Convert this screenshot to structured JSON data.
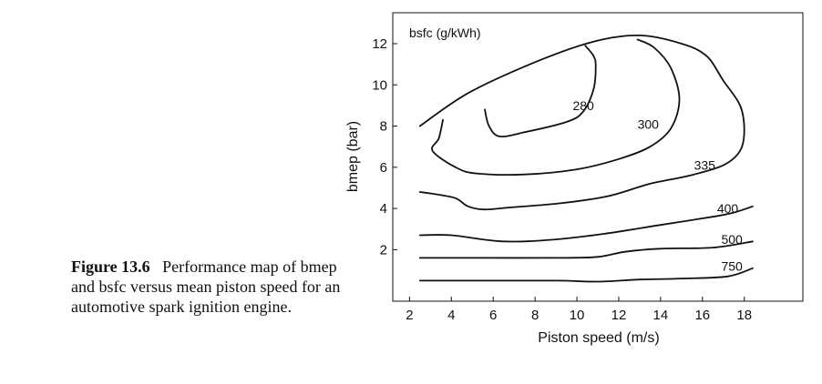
{
  "caption": {
    "lead": "Figure 13.6",
    "text": "Performance map of bmep and bsfc versus mean piston speed for an automotive spark ignition engine."
  },
  "chart_data": {
    "type": "contour",
    "xlabel": "Piston speed (m/s)",
    "ylabel": "bmep (bar)",
    "unit_label": "bsfc (g/kWh)",
    "xlim": [
      1.2,
      20.8
    ],
    "ylim": [
      -0.5,
      13.5
    ],
    "xticks": [
      2,
      4,
      6,
      8,
      10,
      12,
      14,
      16,
      18
    ],
    "yticks": [
      2,
      4,
      6,
      8,
      10,
      12
    ],
    "contours": [
      {
        "label": "280",
        "label_at": [
          9.8,
          9.0
        ],
        "points": [
          [
            5.6,
            8.8
          ],
          [
            5.8,
            8.0
          ],
          [
            6.3,
            7.5
          ],
          [
            7.5,
            7.7
          ],
          [
            9.5,
            8.2
          ],
          [
            10.3,
            8.7
          ],
          [
            10.8,
            9.8
          ],
          [
            10.9,
            10.9
          ],
          [
            10.8,
            11.4
          ],
          [
            10.4,
            11.9
          ]
        ]
      },
      {
        "label": "300",
        "label_at": [
          12.9,
          8.1
        ],
        "points": [
          [
            3.6,
            8.3
          ],
          [
            3.4,
            7.4
          ],
          [
            3.1,
            6.8
          ],
          [
            4.2,
            6.0
          ],
          [
            5.2,
            5.7
          ],
          [
            7.5,
            5.65
          ],
          [
            10.0,
            5.9
          ],
          [
            12.0,
            6.4
          ],
          [
            13.5,
            7.0
          ],
          [
            14.5,
            7.9
          ],
          [
            14.9,
            9.3
          ],
          [
            14.5,
            10.8
          ],
          [
            13.7,
            11.8
          ],
          [
            12.9,
            12.2
          ]
        ]
      },
      {
        "label": "335",
        "label_at": [
          15.6,
          6.1
        ],
        "points": [
          [
            2.5,
            8.0
          ],
          [
            4.8,
            9.6
          ],
          [
            8.0,
            11.1
          ],
          [
            10.8,
            12.1
          ],
          [
            13.0,
            12.4
          ],
          [
            15.0,
            12.0
          ],
          [
            16.2,
            11.4
          ],
          [
            17.0,
            10.2
          ],
          [
            17.8,
            9.0
          ],
          [
            18.0,
            7.8
          ],
          [
            17.8,
            6.8
          ],
          [
            17.0,
            6.1
          ],
          [
            15.4,
            5.6
          ],
          [
            13.5,
            5.2
          ],
          [
            11.5,
            4.6
          ],
          [
            9.2,
            4.25
          ],
          [
            6.8,
            4.05
          ],
          [
            5.6,
            3.95
          ],
          [
            4.8,
            4.1
          ],
          [
            4.2,
            4.5
          ],
          [
            3.2,
            4.7
          ],
          [
            2.5,
            4.8
          ]
        ]
      },
      {
        "label": "400",
        "label_at": [
          16.7,
          4.0
        ],
        "points": [
          [
            2.5,
            2.7
          ],
          [
            4.0,
            2.7
          ],
          [
            6.5,
            2.4
          ],
          [
            9.0,
            2.5
          ],
          [
            11.5,
            2.8
          ],
          [
            14.0,
            3.2
          ],
          [
            16.5,
            3.6
          ],
          [
            17.5,
            3.8
          ],
          [
            18.4,
            4.1
          ]
        ]
      },
      {
        "label": "500",
        "label_at": [
          16.9,
          2.5
        ],
        "points": [
          [
            2.5,
            1.6
          ],
          [
            5.5,
            1.6
          ],
          [
            9.0,
            1.6
          ],
          [
            11.0,
            1.65
          ],
          [
            12.3,
            1.9
          ],
          [
            14.0,
            2.05
          ],
          [
            16.5,
            2.1
          ],
          [
            18.4,
            2.4
          ]
        ]
      },
      {
        "label": "750",
        "label_at": [
          16.9,
          1.2
        ],
        "points": [
          [
            2.5,
            0.5
          ],
          [
            5.5,
            0.5
          ],
          [
            9.0,
            0.5
          ],
          [
            11.0,
            0.45
          ],
          [
            13.0,
            0.55
          ],
          [
            15.0,
            0.6
          ],
          [
            17.2,
            0.7
          ],
          [
            18.4,
            1.1
          ]
        ]
      }
    ]
  }
}
